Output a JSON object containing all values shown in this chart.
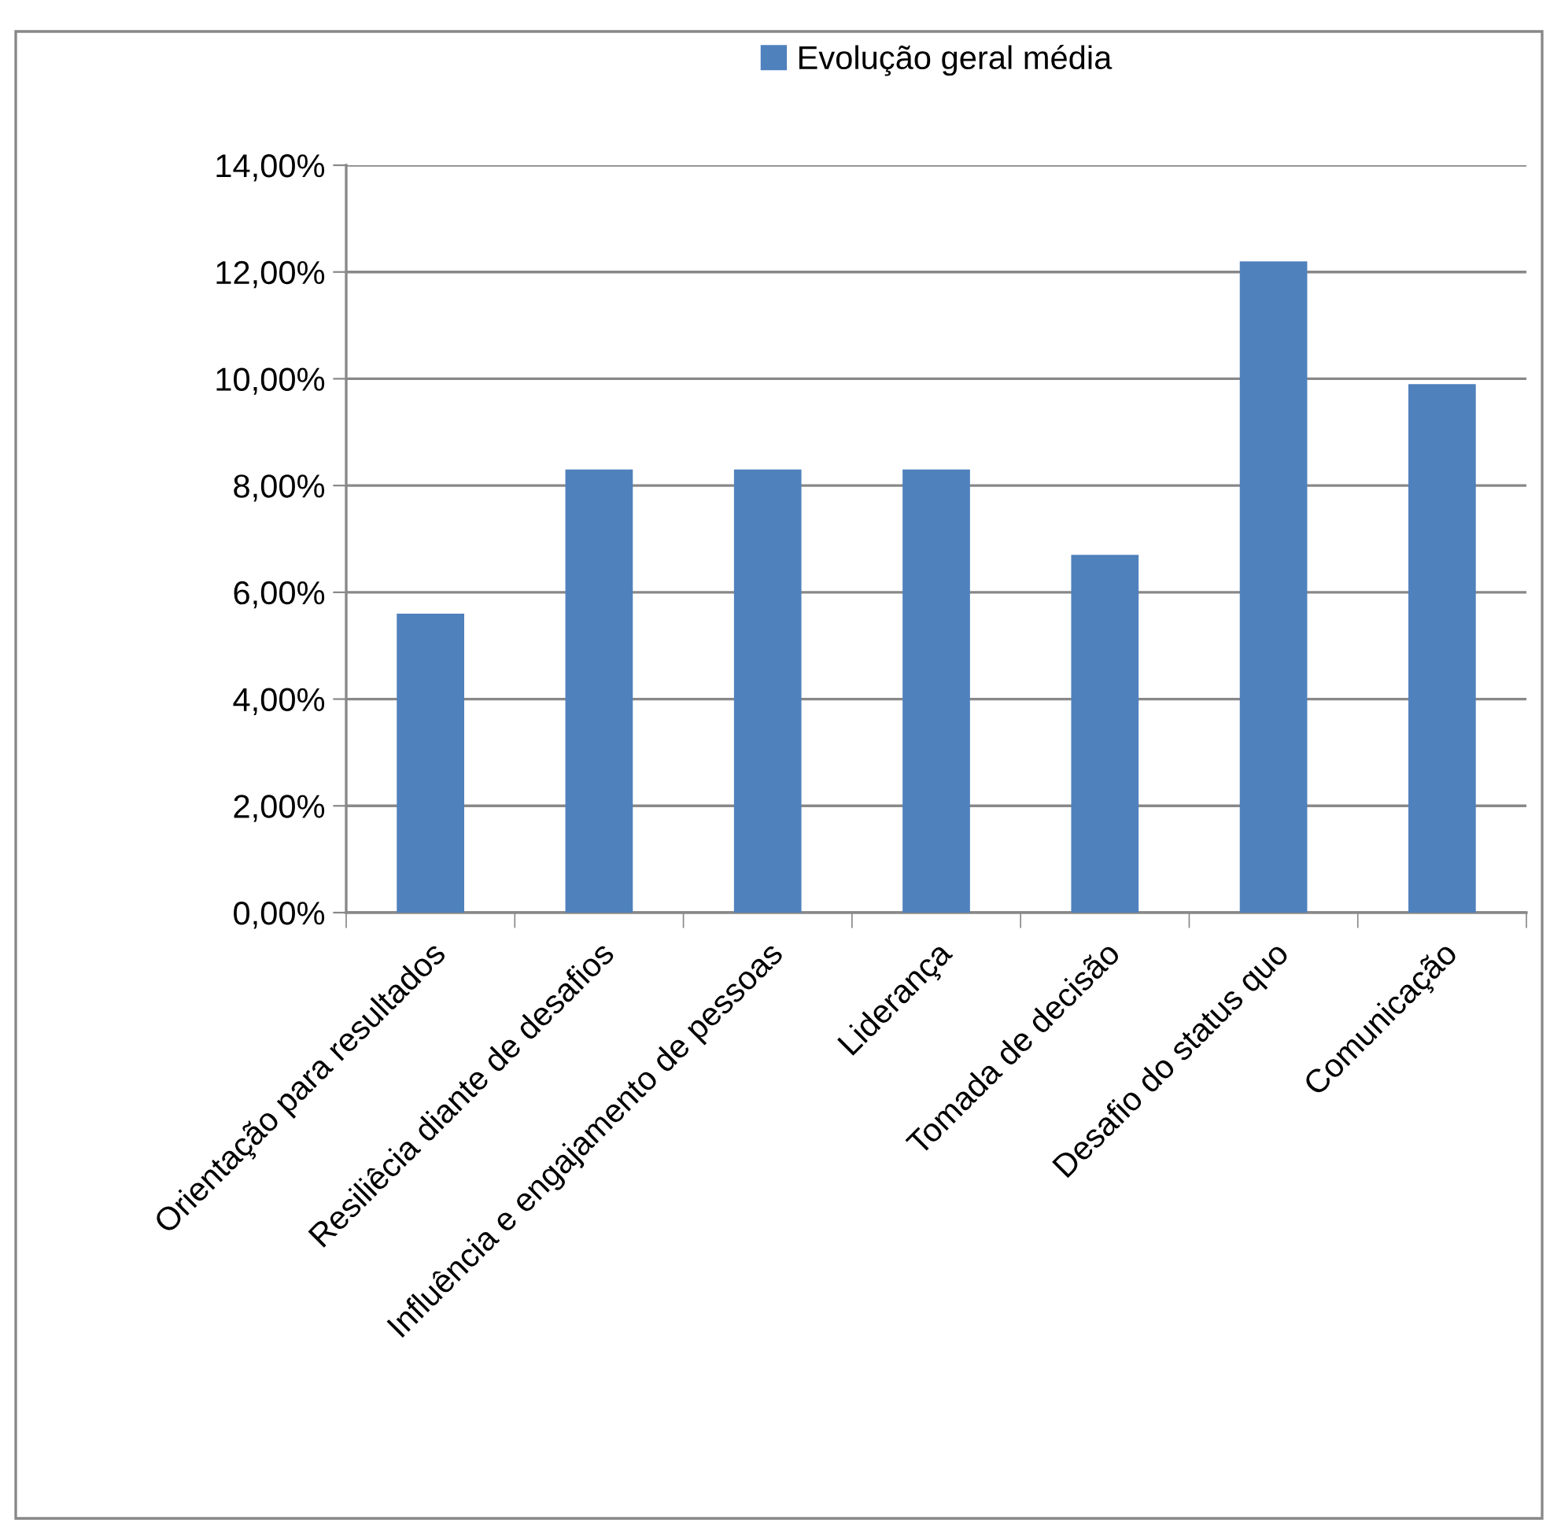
{
  "chart_data": {
    "type": "bar",
    "categories": [
      "Orientação para resultados",
      "Resiliêcia diante de desafios",
      "Influência e engajamento de pessoas",
      "Liderança",
      "Tomada de decisão",
      "Desafio do status quo",
      "Comunicação"
    ],
    "series": [
      {
        "name": "Evolução geral média",
        "color": "#4f81bd",
        "values": [
          5.6,
          8.3,
          8.3,
          8.3,
          6.7,
          12.2,
          9.9
        ]
      }
    ],
    "ylim": [
      0,
      14
    ],
    "yticks": [
      {
        "value": 0,
        "label": "0,00%"
      },
      {
        "value": 2,
        "label": "2,00%"
      },
      {
        "value": 4,
        "label": "4,00%"
      },
      {
        "value": 6,
        "label": "6,00%"
      },
      {
        "value": 8,
        "label": "8,00%"
      },
      {
        "value": 10,
        "label": "10,00%"
      },
      {
        "value": 12,
        "label": "12,00%"
      },
      {
        "value": 14,
        "label": "14,00%"
      }
    ],
    "grid": "y",
    "legend": "top"
  }
}
